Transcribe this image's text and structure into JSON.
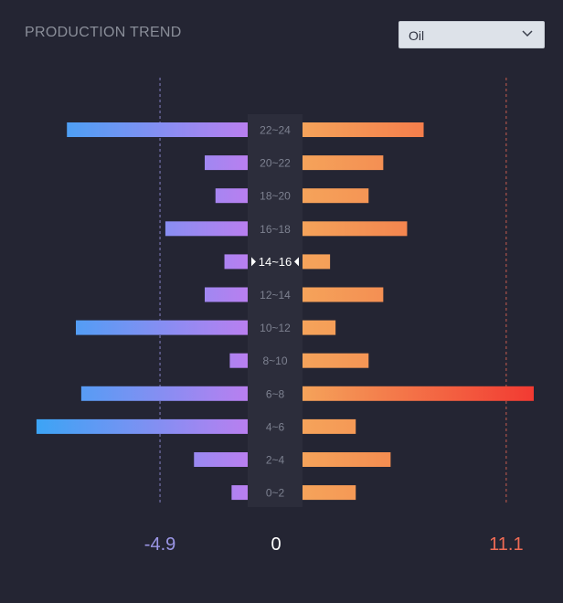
{
  "header": {
    "title": "PRODUCTION TREND"
  },
  "filter": {
    "selected": "Oil",
    "icon": "chevron-down-icon"
  },
  "chart_data": {
    "type": "bar",
    "orientation": "horizontal-diverging",
    "title": "PRODUCTION TREND",
    "categories": [
      "22~24",
      "20~22",
      "18~20",
      "16~18",
      "14~16",
      "12~14",
      "10~12",
      "8~10",
      "6~8",
      "4~6",
      "2~4",
      "0~2"
    ],
    "selected_category": "14~16",
    "series": [
      {
        "side": "left",
        "values": [
          -10.1,
          -2.4,
          -1.8,
          -4.6,
          -1.3,
          -2.4,
          -9.6,
          -1.0,
          -9.3,
          -11.8,
          -3.0,
          -0.9
        ],
        "color_low": "#b97ff0",
        "color_high": "#3aa5f5"
      },
      {
        "side": "right",
        "values": [
          6.6,
          4.4,
          3.6,
          5.7,
          1.5,
          4.4,
          1.8,
          3.6,
          12.6,
          2.9,
          4.8,
          2.9
        ],
        "color_low": "#f5a35a",
        "color_high": "#f23a32"
      }
    ],
    "reference_lines": [
      {
        "side": "left",
        "value": -4.9,
        "label": "-4.9",
        "color": "#9b96e6"
      },
      {
        "side": "right",
        "value": 11.1,
        "label": "11.1",
        "color": "#f06b55"
      }
    ],
    "center_label": "0",
    "xlim": [
      -12.0,
      12.6
    ]
  }
}
